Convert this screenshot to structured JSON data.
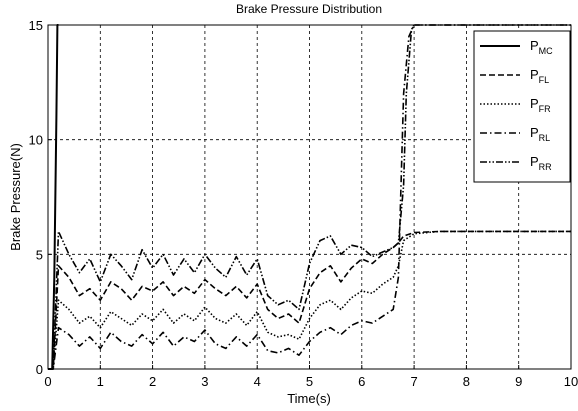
{
  "chart_data": {
    "type": "line",
    "title": "Brake Pressure Distribution",
    "xlabel": "Time(s)",
    "ylabel": "Brake Pressure(N)",
    "xlim": [
      0,
      10
    ],
    "ylim": [
      0,
      15
    ],
    "x_ticks": [
      "0",
      "1",
      "2",
      "3",
      "4",
      "5",
      "6",
      "7",
      "8",
      "9",
      "10"
    ],
    "y_ticks": [
      "0",
      "5",
      "10",
      "15"
    ],
    "grid": true,
    "legend_position": "top-right",
    "series": [
      {
        "name": "P_MC",
        "label_main": "P",
        "label_sub": "MC",
        "style": "solid",
        "x": [
          0,
          0.08,
          0.12,
          0.16,
          0.18,
          0.2
        ],
        "y": [
          0,
          0,
          4,
          11,
          15,
          15
        ]
      },
      {
        "name": "P_FL",
        "label_main": "P",
        "label_sub": "FL",
        "style": "dashed",
        "x": [
          0,
          0.1,
          0.2,
          0.4,
          0.6,
          0.8,
          1.0,
          1.2,
          1.4,
          1.6,
          1.8,
          2.0,
          2.2,
          2.4,
          2.6,
          2.8,
          3.0,
          3.2,
          3.4,
          3.6,
          3.8,
          4.0,
          4.2,
          4.4,
          4.6,
          4.8,
          5.0,
          5.2,
          5.4,
          5.6,
          5.8,
          6.0,
          6.2,
          6.4,
          6.6,
          6.7,
          6.8,
          7.0,
          7.5,
          8.0,
          9.0,
          10.0
        ],
        "y": [
          0,
          0,
          4.5,
          4.0,
          3.2,
          3.5,
          3.0,
          3.8,
          3.5,
          3.0,
          3.6,
          3.4,
          3.8,
          3.2,
          3.6,
          3.3,
          3.9,
          3.5,
          3.2,
          3.6,
          3.1,
          3.7,
          2.6,
          2.2,
          2.4,
          2.0,
          3.5,
          4.2,
          4.5,
          3.8,
          4.4,
          4.8,
          4.6,
          5.0,
          5.3,
          5.5,
          5.8,
          5.95,
          6.0,
          6.0,
          6.0,
          6.0
        ]
      },
      {
        "name": "P_FR",
        "label_main": "P",
        "label_sub": "FR",
        "style": "dotted",
        "x": [
          0,
          0.1,
          0.2,
          0.4,
          0.6,
          0.8,
          1.0,
          1.2,
          1.4,
          1.6,
          1.8,
          2.0,
          2.2,
          2.4,
          2.6,
          2.8,
          3.0,
          3.2,
          3.4,
          3.6,
          3.8,
          4.0,
          4.2,
          4.4,
          4.6,
          4.8,
          5.0,
          5.2,
          5.4,
          5.6,
          5.8,
          6.0,
          6.2,
          6.4,
          6.6,
          6.7,
          6.8,
          7.0,
          7.5,
          8.0,
          9.0,
          10.0
        ],
        "y": [
          0,
          0,
          3.0,
          2.6,
          2.0,
          2.3,
          1.8,
          2.5,
          2.2,
          1.9,
          2.4,
          2.1,
          2.6,
          2.0,
          2.4,
          2.1,
          2.7,
          2.2,
          2.0,
          2.4,
          1.9,
          2.5,
          1.6,
          1.4,
          1.5,
          1.3,
          2.2,
          2.8,
          3.0,
          2.6,
          3.1,
          3.4,
          3.3,
          3.7,
          4.0,
          4.5,
          5.6,
          5.9,
          6.0,
          6.0,
          6.0,
          6.0
        ]
      },
      {
        "name": "P_RL",
        "label_main": "P",
        "label_sub": "RL",
        "style": "dashdot",
        "x": [
          0,
          0.1,
          0.2,
          0.4,
          0.6,
          0.8,
          1.0,
          1.2,
          1.4,
          1.6,
          1.8,
          2.0,
          2.2,
          2.4,
          2.6,
          2.8,
          3.0,
          3.2,
          3.4,
          3.6,
          3.8,
          4.0,
          4.2,
          4.4,
          4.6,
          4.8,
          5.0,
          5.2,
          5.4,
          5.6,
          5.8,
          6.0,
          6.2,
          6.4,
          6.6,
          6.7,
          6.75,
          6.8,
          6.9,
          7.0,
          7.5,
          8.0,
          9.0,
          10.0
        ],
        "y": [
          0,
          0,
          1.8,
          1.5,
          1.0,
          1.4,
          0.9,
          1.6,
          1.2,
          1.0,
          1.5,
          1.1,
          1.6,
          1.0,
          1.4,
          1.2,
          1.7,
          1.1,
          0.9,
          1.4,
          1.0,
          1.5,
          0.8,
          0.7,
          0.9,
          0.6,
          1.2,
          1.6,
          1.8,
          1.5,
          1.9,
          2.1,
          2.0,
          2.3,
          2.6,
          4.0,
          8.0,
          12.0,
          14.5,
          15,
          15,
          15,
          15,
          15
        ]
      },
      {
        "name": "P_RR",
        "label_main": "P",
        "label_sub": "RR",
        "style": "dashdotdot",
        "x": [
          0,
          0.1,
          0.2,
          0.4,
          0.6,
          0.8,
          1.0,
          1.2,
          1.4,
          1.6,
          1.8,
          2.0,
          2.2,
          2.4,
          2.6,
          2.8,
          3.0,
          3.2,
          3.4,
          3.6,
          3.8,
          4.0,
          4.2,
          4.4,
          4.6,
          4.8,
          5.0,
          5.2,
          5.4,
          5.6,
          5.8,
          6.0,
          6.2,
          6.4,
          6.6,
          6.7,
          6.8,
          6.85,
          6.95,
          7.0,
          7.5,
          8.0,
          9.0,
          10.0
        ],
        "y": [
          0,
          0,
          6.0,
          5.0,
          4.2,
          4.8,
          3.8,
          5.0,
          4.5,
          3.9,
          5.2,
          4.4,
          5.0,
          4.1,
          4.8,
          4.2,
          5.0,
          4.4,
          4.0,
          4.9,
          4.1,
          4.8,
          3.2,
          2.8,
          3.0,
          2.6,
          4.6,
          5.6,
          5.8,
          5.0,
          5.4,
          5.3,
          4.9,
          5.1,
          5.3,
          5.5,
          8.0,
          12.0,
          14.8,
          15,
          15,
          15,
          15,
          15
        ]
      }
    ]
  }
}
